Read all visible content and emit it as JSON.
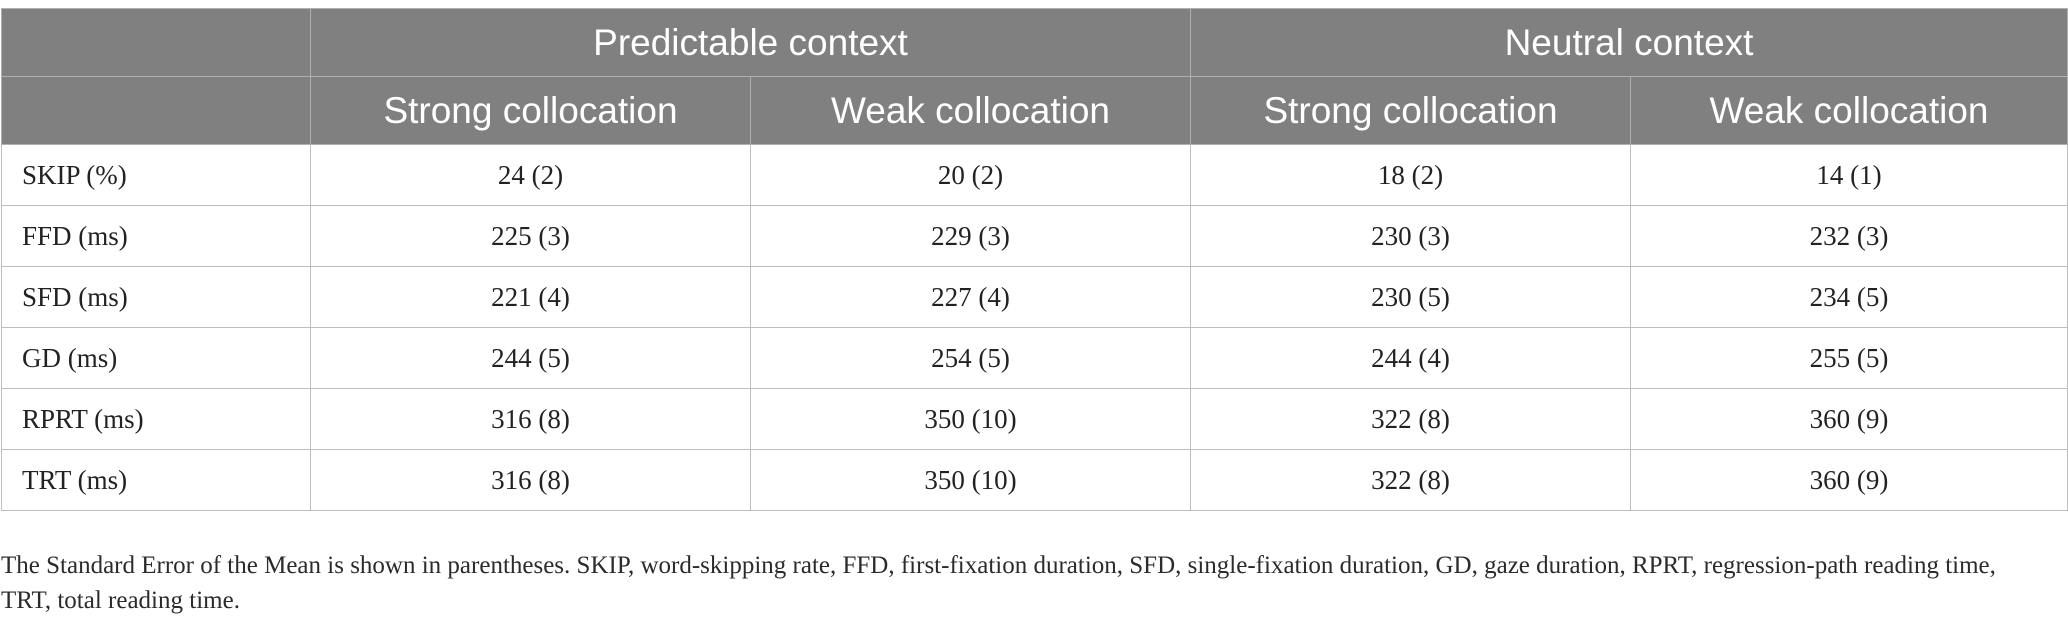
{
  "table": {
    "header_groups": [
      {
        "label": ""
      },
      {
        "label": "Predictable context"
      },
      {
        "label": "Neutral context"
      }
    ],
    "subheaders": [
      "",
      "Strong collocation",
      "Weak collocation",
      "Strong collocation",
      "Weak collocation"
    ],
    "rows": [
      {
        "label": "SKIP (%)",
        "cells": [
          "24 (2)",
          "20 (2)",
          "18 (2)",
          "14 (1)"
        ]
      },
      {
        "label": "FFD (ms)",
        "cells": [
          "225 (3)",
          "229 (3)",
          "230 (3)",
          "232 (3)"
        ]
      },
      {
        "label": "SFD (ms)",
        "cells": [
          "221 (4)",
          "227 (4)",
          "230 (5)",
          "234 (5)"
        ]
      },
      {
        "label": "GD (ms)",
        "cells": [
          "244 (5)",
          "254 (5)",
          "244 (4)",
          "255 (5)"
        ]
      },
      {
        "label": "RPRT (ms)",
        "cells": [
          "316 (8)",
          "350 (10)",
          "322 (8)",
          "360 (9)"
        ]
      },
      {
        "label": "TRT (ms)",
        "cells": [
          "316 (8)",
          "350 (10)",
          "322 (8)",
          "360 (9)"
        ]
      }
    ]
  },
  "footnote": "The Standard Error of the Mean is shown in parentheses. SKIP, word-skipping rate, FFD, first-fixation duration, SFD, single-fixation duration, GD, gaze duration, RPRT, regression-path reading time, TRT, total reading time.",
  "colors": {
    "header_bg": "#808080",
    "header_text": "#ffffff",
    "border": "#bdbdbd"
  }
}
